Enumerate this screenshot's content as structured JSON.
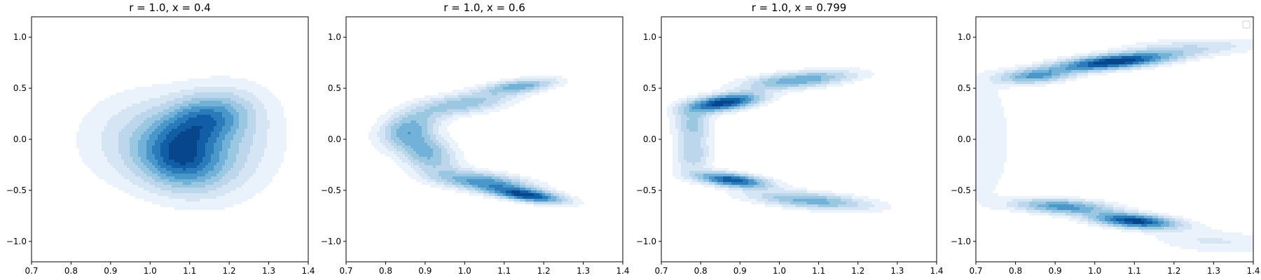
{
  "chart_data": [
    {
      "type": "contour",
      "title": "r = 1.0, x = 0.4",
      "xlabel": "",
      "ylabel": "",
      "xlim": [
        0.7,
        1.4
      ],
      "ylim": [
        -1.2,
        1.2
      ],
      "xticks": [
        "0.7",
        "0.8",
        "0.9",
        "1.0",
        "1.1",
        "1.2",
        "1.3",
        "1.4"
      ],
      "yticks": [
        "-1.0",
        "-0.5",
        "0.0",
        "0.5",
        "1.0"
      ],
      "grid": false,
      "legend": false,
      "colormap": "Blues",
      "density_components": [
        {
          "x": 1.08,
          "y": -0.18,
          "sx": 0.07,
          "sy": 0.2,
          "rho": -0.1,
          "w": 1.0
        },
        {
          "x": 1.14,
          "y": 0.2,
          "sx": 0.07,
          "sy": 0.16,
          "rho": 0.2,
          "w": 0.8
        },
        {
          "x": 1.0,
          "y": 0.0,
          "sx": 0.11,
          "sy": 0.3,
          "rho": 0.0,
          "w": 0.35
        },
        {
          "x": 1.2,
          "y": -0.05,
          "sx": 0.09,
          "sy": 0.35,
          "rho": 0.1,
          "w": 0.3
        }
      ]
    },
    {
      "type": "contour",
      "title": "r = 1.0, x = 0.6",
      "xlabel": "",
      "ylabel": "",
      "xlim": [
        0.7,
        1.4
      ],
      "ylim": [
        -1.2,
        1.2
      ],
      "xticks": [
        "0.7",
        "0.8",
        "0.9",
        "1.0",
        "1.1",
        "1.2",
        "1.3",
        "1.4"
      ],
      "yticks": [
        "-1.0",
        "-0.5",
        "0.0",
        "0.5",
        "1.0"
      ],
      "grid": false,
      "legend": false,
      "colormap": "Blues",
      "density_components": [
        {
          "x": 1.16,
          "y": -0.55,
          "sx": 0.06,
          "sy": 0.05,
          "rho": -0.6,
          "w": 1.0
        },
        {
          "x": 1.05,
          "y": -0.42,
          "sx": 0.08,
          "sy": 0.07,
          "rho": -0.5,
          "w": 0.7
        },
        {
          "x": 0.9,
          "y": -0.12,
          "sx": 0.05,
          "sy": 0.14,
          "rho": -0.4,
          "w": 0.55
        },
        {
          "x": 0.86,
          "y": 0.12,
          "sx": 0.05,
          "sy": 0.12,
          "rho": 0.4,
          "w": 0.45
        },
        {
          "x": 1.0,
          "y": 0.35,
          "sx": 0.08,
          "sy": 0.08,
          "rho": 0.5,
          "w": 0.45
        },
        {
          "x": 1.14,
          "y": 0.52,
          "sx": 0.06,
          "sy": 0.05,
          "rho": 0.5,
          "w": 0.55
        }
      ]
    },
    {
      "type": "contour",
      "title": "r = 1.0, x = 0.799",
      "xlabel": "",
      "ylabel": "",
      "xlim": [
        0.7,
        1.4
      ],
      "ylim": [
        -1.2,
        1.2
      ],
      "xticks": [
        "0.7",
        "0.8",
        "0.9",
        "1.0",
        "1.1",
        "1.2",
        "1.3",
        "1.4"
      ],
      "yticks": [
        "-1.0",
        "-0.5",
        "0.0",
        "0.5",
        "1.0"
      ],
      "grid": false,
      "legend": false,
      "colormap": "Blues",
      "density_components": [
        {
          "x": 0.86,
          "y": 0.36,
          "sx": 0.06,
          "sy": 0.06,
          "rho": 0.5,
          "w": 1.0
        },
        {
          "x": 1.05,
          "y": 0.58,
          "sx": 0.09,
          "sy": 0.06,
          "rho": 0.5,
          "w": 0.55
        },
        {
          "x": 0.78,
          "y": 0.15,
          "sx": 0.03,
          "sy": 0.12,
          "rho": 0.0,
          "w": 0.35
        },
        {
          "x": 0.78,
          "y": -0.15,
          "sx": 0.03,
          "sy": 0.12,
          "rho": 0.0,
          "w": 0.3
        },
        {
          "x": 0.88,
          "y": -0.4,
          "sx": 0.06,
          "sy": 0.05,
          "rho": -0.5,
          "w": 0.9
        },
        {
          "x": 1.08,
          "y": -0.6,
          "sx": 0.1,
          "sy": 0.06,
          "rho": -0.5,
          "w": 0.5
        }
      ]
    },
    {
      "type": "contour",
      "title": "",
      "xlabel": "",
      "ylabel": "",
      "xlim": [
        0.7,
        1.4
      ],
      "ylim": [
        -1.2,
        1.2
      ],
      "xticks": [
        "0.7",
        "0.8",
        "0.9",
        "1.0",
        "1.1",
        "1.2",
        "1.3",
        "1.4"
      ],
      "yticks": [
        "-1.0",
        "-0.5",
        "0.0",
        "0.5",
        "1.0"
      ],
      "grid": false,
      "legend": true,
      "legend_position": "top-right",
      "colormap": "Blues",
      "density_components": [
        {
          "x": 1.05,
          "y": 0.76,
          "sx": 0.1,
          "sy": 0.06,
          "rho": 0.6,
          "w": 1.0
        },
        {
          "x": 0.85,
          "y": 0.62,
          "sx": 0.06,
          "sy": 0.05,
          "rho": 0.3,
          "w": 0.55
        },
        {
          "x": 1.1,
          "y": -0.8,
          "sx": 0.07,
          "sy": 0.05,
          "rho": -0.4,
          "w": 0.95
        },
        {
          "x": 0.92,
          "y": -0.66,
          "sx": 0.08,
          "sy": 0.05,
          "rho": -0.3,
          "w": 0.6
        },
        {
          "x": 0.72,
          "y": 0.0,
          "sx": 0.05,
          "sy": 0.45,
          "rho": 0.0,
          "w": 0.12
        },
        {
          "x": 1.25,
          "y": 0.9,
          "sx": 0.12,
          "sy": 0.06,
          "rho": 0.3,
          "w": 0.2
        },
        {
          "x": 1.3,
          "y": -1.0,
          "sx": 0.1,
          "sy": 0.08,
          "rho": -0.3,
          "w": 0.15
        }
      ]
    }
  ]
}
